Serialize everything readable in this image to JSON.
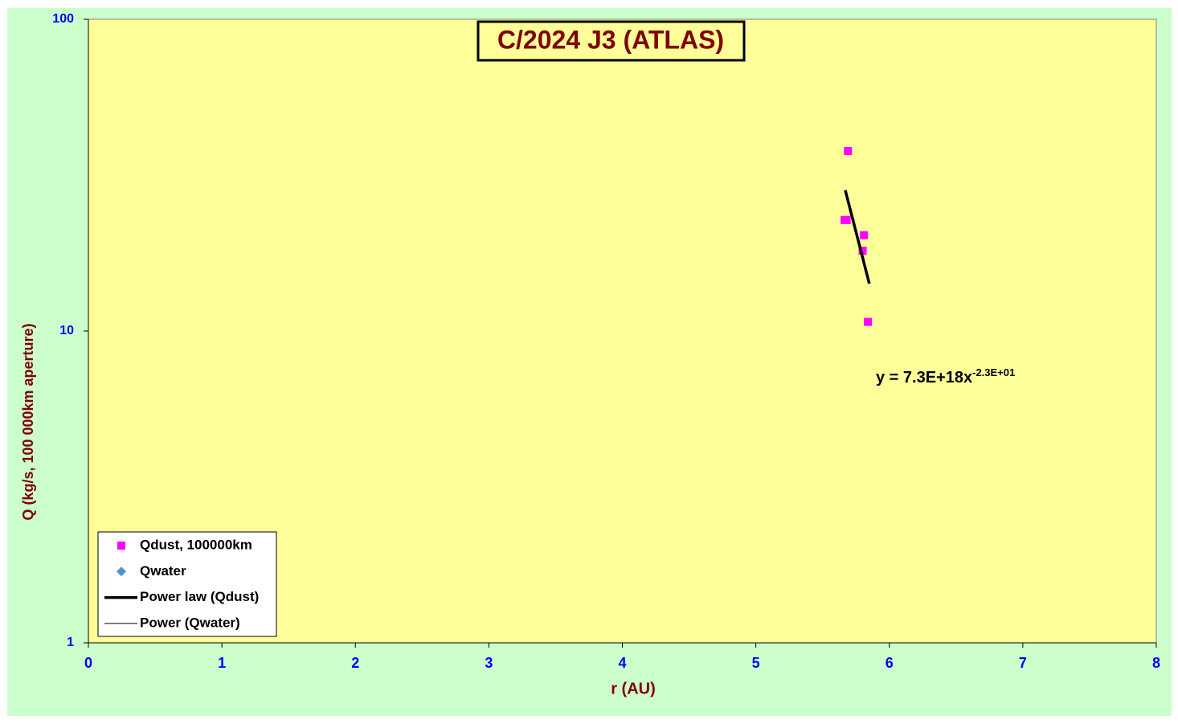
{
  "chart_data": {
    "type": "scatter",
    "title": "C/2024 J3 (ATLAS)",
    "x_label": "r (AU)",
    "y_label": "Q (kg/s, 100 000km aperture)",
    "xlim": [
      0,
      8
    ],
    "xticks": [
      0,
      1,
      2,
      3,
      4,
      5,
      6,
      7,
      8
    ],
    "ylim": [
      1,
      100
    ],
    "yticks": [
      1,
      10,
      100
    ],
    "log_y": true,
    "annotation": "y = 7.3E+18x",
    "annotation_exponent": "-2.3E+01",
    "series": [
      {
        "name": "Qdust, 100000km",
        "color": "#ff00ff",
        "style": "square",
        "x": [
          5.69,
          5.665,
          5.68,
          5.81,
          5.8,
          5.84
        ],
        "values": [
          37.8,
          22.7,
          22.7,
          20.3,
          18.1,
          10.7
        ]
      },
      {
        "name": "Qwater",
        "color": "#4f94cd",
        "style": "diamond",
        "x": [],
        "values": []
      },
      {
        "name": "Power law (Qdust)",
        "color": "#000000",
        "style": "thick-line",
        "x": [
          5.67,
          5.85
        ],
        "values": [
          28.3,
          14.2
        ]
      },
      {
        "name": "Power (Qwater)",
        "color": "#000000",
        "style": "thin-line",
        "x": [],
        "values": []
      }
    ]
  }
}
